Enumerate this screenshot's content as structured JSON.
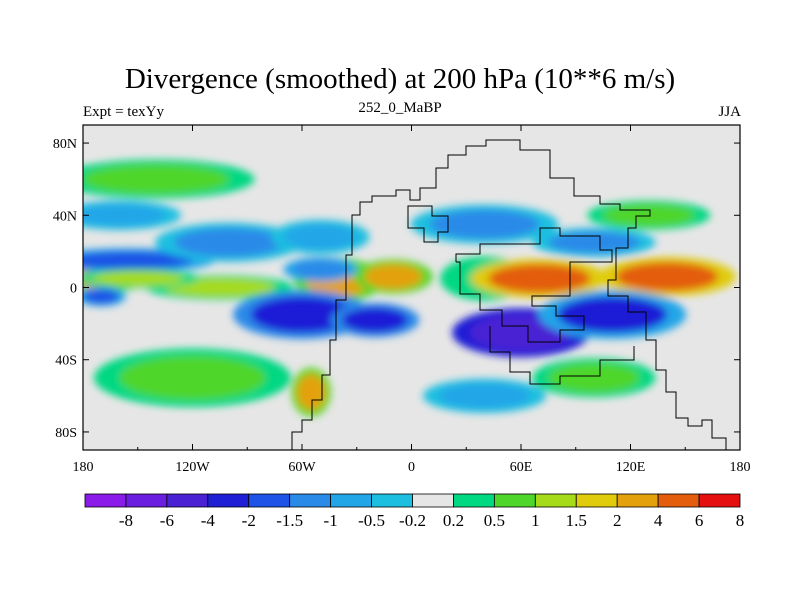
{
  "title": "Divergence (smoothed) at 200 hPa (10**6 m/s)",
  "subtitle": "252_0_MaBP",
  "left_label": "Expt = texYy",
  "right_label": "JJA",
  "chart_data": {
    "type": "heatmap",
    "variable": "Divergence (smoothed) at 200 hPa",
    "units": "10**6 m/s",
    "xlim": [
      -180,
      180
    ],
    "ylim": [
      -90,
      90
    ],
    "x_ticks": [
      {
        "lon": -180,
        "label": "180"
      },
      {
        "lon": -120,
        "label": "120W"
      },
      {
        "lon": -60,
        "label": "60W"
      },
      {
        "lon": 0,
        "label": "0"
      },
      {
        "lon": 60,
        "label": "60E"
      },
      {
        "lon": 120,
        "label": "120E"
      },
      {
        "lon": 180,
        "label": "180"
      }
    ],
    "y_ticks": [
      {
        "lat": 80,
        "label": "80N"
      },
      {
        "lat": 40,
        "label": "40N"
      },
      {
        "lat": 0,
        "label": "0"
      },
      {
        "lat": -40,
        "label": "40S"
      },
      {
        "lat": -80,
        "label": "80S"
      }
    ],
    "colorbar": {
      "levels": [
        "-8",
        "-6",
        "-4",
        "-2",
        "-1.5",
        "-1",
        "-0.5",
        "-0.2",
        "0.2",
        "0.5",
        "1",
        "1.5",
        "2",
        "4",
        "6",
        "8"
      ],
      "colors": [
        "#8b1be8",
        "#6a1ee0",
        "#4a22d4",
        "#1f1fd6",
        "#1f52e6",
        "#2a8ae8",
        "#22a6e8",
        "#1cbfe0",
        "#e6e6e6",
        "#00d882",
        "#4fd62a",
        "#a6db1a",
        "#e0cc0c",
        "#e3a20c",
        "#e35d0c",
        "#e60f0f"
      ]
    },
    "features": [
      {
        "lon": 40,
        "lat": 5,
        "rx": 18,
        "ry": 9,
        "value": 0.3
      },
      {
        "lon": 70,
        "lat": 5,
        "rx": 28,
        "ry": 8,
        "value": 5
      },
      {
        "lon": 140,
        "lat": 6,
        "rx": 28,
        "ry": 8,
        "value": 4.5
      },
      {
        "lon": -170,
        "lat": 6,
        "rx": 18,
        "ry": 7,
        "value": 2
      },
      {
        "lon": -105,
        "lat": 0,
        "rx": 30,
        "ry": 5,
        "value": 1.2
      },
      {
        "lon": -40,
        "lat": 4,
        "rx": 18,
        "ry": 9,
        "value": 2.5
      },
      {
        "lon": -10,
        "lat": 6,
        "rx": 16,
        "ry": 7,
        "value": 2
      },
      {
        "lon": -155,
        "lat": 15,
        "rx": 35,
        "ry": 5,
        "value": -1.6
      },
      {
        "lon": -150,
        "lat": 5,
        "rx": 25,
        "ry": 4,
        "value": 1.1
      },
      {
        "lon": -170,
        "lat": -5,
        "rx": 10,
        "ry": 4,
        "value": -1.8
      },
      {
        "lon": 60,
        "lat": -25,
        "rx": 28,
        "ry": 10,
        "value": -6
      },
      {
        "lon": 110,
        "lat": -15,
        "rx": 30,
        "ry": 10,
        "value": -2.2
      },
      {
        "lon": -60,
        "lat": -15,
        "rx": 28,
        "ry": 10,
        "value": -3
      },
      {
        "lon": -20,
        "lat": -18,
        "rx": 18,
        "ry": 7,
        "value": -3.2
      },
      {
        "lon": -50,
        "lat": 10,
        "rx": 15,
        "ry": 5,
        "value": -1.5
      },
      {
        "lon": -100,
        "lat": 25,
        "rx": 30,
        "ry": 8,
        "value": -1.2
      },
      {
        "lon": -50,
        "lat": 28,
        "rx": 20,
        "ry": 7,
        "value": -1
      },
      {
        "lon": 40,
        "lat": 35,
        "rx": 30,
        "ry": 8,
        "value": -1.4
      },
      {
        "lon": 100,
        "lat": 25,
        "rx": 25,
        "ry": 6,
        "value": -1.2
      },
      {
        "lon": -160,
        "lat": 40,
        "rx": 25,
        "ry": 6,
        "value": -0.8
      },
      {
        "lon": 130,
        "lat": 40,
        "rx": 25,
        "ry": 6,
        "value": 0.8
      },
      {
        "lon": -140,
        "lat": 60,
        "rx": 40,
        "ry": 8,
        "value": 0.7
      },
      {
        "lon": -120,
        "lat": -50,
        "rx": 40,
        "ry": 12,
        "value": 0.8
      },
      {
        "lon": -55,
        "lat": -58,
        "rx": 8,
        "ry": 10,
        "value": 2
      },
      {
        "lon": 100,
        "lat": -50,
        "rx": 25,
        "ry": 8,
        "value": 0.6
      },
      {
        "lon": 40,
        "lat": -60,
        "rx": 25,
        "ry": 7,
        "value": -0.7
      }
    ]
  }
}
